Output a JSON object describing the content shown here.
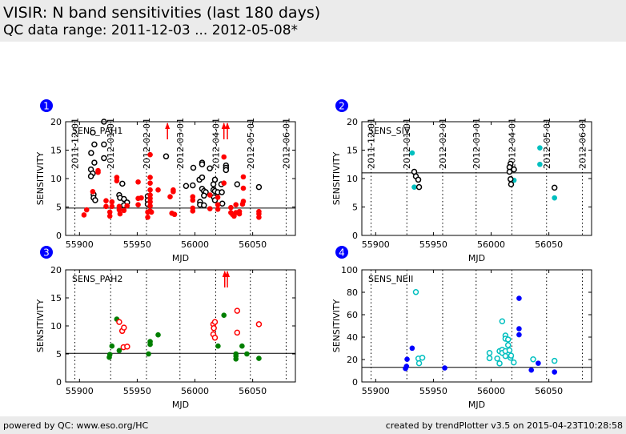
{
  "header": {
    "title": "VISIR: N band sensitivities (last 180 days)",
    "subtitle": "QC data range: 2011-12-03 ... 2012-05-08*"
  },
  "footer": {
    "left": "powered by QC: www.eso.org/HC",
    "right": "created by trendPlotter v3.5 on 2015-04-23T10:28:58"
  },
  "colors": {
    "red": "#ff0000",
    "black": "#000000",
    "green": "#007f00",
    "cyan": "#00bfbf",
    "blue": "#0000ff",
    "badge": "#0000ff"
  },
  "date_ticks": [
    {
      "label": "2011-12-01",
      "mjd": 55896
    },
    {
      "label": "2012-01-01",
      "mjd": 55927
    },
    {
      "label": "2012-02-01",
      "mjd": 55958
    },
    {
      "label": "2012-03-01",
      "mjd": 55987
    },
    {
      "label": "2012-04-01",
      "mjd": 56018
    },
    {
      "label": "2012-05-01",
      "mjd": 56048
    },
    {
      "label": "2012-06-01",
      "mjd": 56079
    }
  ],
  "chart_data": [
    {
      "id": "1",
      "type": "scatter",
      "title": "SENS_PAH1",
      "xlabel": "MJD",
      "ylabel": "SENSITIVITY",
      "xlim": [
        55888,
        56087
      ],
      "ylim": [
        0,
        20
      ],
      "xticks": [
        55900,
        55950,
        56000,
        56050
      ],
      "yticks": [
        0,
        5,
        10,
        15,
        20
      ],
      "threshold": 4.8,
      "grid": "dotted monthly verticals",
      "series": [
        {
          "name": "black-open",
          "color": "#000000",
          "filled": false,
          "points": [
            [
              55911.5,
              18.1
            ],
            [
              55921.2,
              20
            ],
            [
              55912.9,
              16
            ],
            [
              55921.2,
              16
            ],
            [
              55910.1,
              14.5
            ],
            [
              55921.2,
              13.6
            ],
            [
              55912.9,
              12.8
            ],
            [
              55909.9,
              11.6
            ],
            [
              55911.5,
              10.9
            ],
            [
              55909.9,
              10.4
            ],
            [
              55912.2,
              7.2
            ],
            [
              55912.2,
              6.6
            ],
            [
              55913.6,
              6.2
            ],
            [
              55934.4,
              7.1
            ],
            [
              55935.1,
              6.6
            ],
            [
              55937.1,
              9.1
            ],
            [
              55938.5,
              6.4
            ],
            [
              55941.2,
              5.8
            ],
            [
              55938.5,
              5.3
            ],
            [
              55959.1,
              6.9
            ],
            [
              55959.1,
              6.2
            ],
            [
              55959.1,
              5.5
            ],
            [
              55975,
              13.9
            ],
            [
              55998.6,
              11.9
            ],
            [
              55992.3,
              8.7
            ],
            [
              55998.1,
              8.8
            ],
            [
              56006.2,
              12.8
            ],
            [
              56006.2,
              12.5
            ],
            [
              56012.9,
              11.8
            ],
            [
              56003.9,
              9.8
            ],
            [
              56006.2,
              10.2
            ],
            [
              56006.2,
              8.2
            ],
            [
              56007.8,
              7.8
            ],
            [
              56009.4,
              7.6
            ],
            [
              56007.8,
              7.0
            ],
            [
              56004.4,
              5.9
            ],
            [
              56004.4,
              5.4
            ],
            [
              56007.8,
              5.3
            ],
            [
              56017.3,
              9.8
            ],
            [
              56016,
              9.0
            ],
            [
              56016,
              8.0
            ],
            [
              56017.3,
              7.8
            ],
            [
              56016.5,
              6.7
            ],
            [
              56017.3,
              6.2
            ],
            [
              56019.8,
              7.6
            ],
            [
              56023.3,
              7.6
            ],
            [
              56022.8,
              9.0
            ],
            [
              56023.7,
              5.6
            ],
            [
              56026.9,
              12.3
            ],
            [
              56026.9,
              11.9
            ],
            [
              56026.9,
              11.5
            ],
            [
              56036.6,
              9.0
            ],
            [
              56055.4,
              8.5
            ]
          ]
        },
        {
          "name": "red-filled",
          "color": "#ff0000",
          "filled": true,
          "points": [
            [
              55903.9,
              3.6
            ],
            [
              55906.2,
              4.5
            ],
            [
              55911.5,
              7.7
            ],
            [
              55916.1,
              11.4
            ],
            [
              55916.1,
              11.1
            ],
            [
              55923,
              6.1
            ],
            [
              55923,
              5.1
            ],
            [
              55926.3,
              4.1
            ],
            [
              55926.3,
              3.4
            ],
            [
              55928.1,
              5.9
            ],
            [
              55928.1,
              5.1
            ],
            [
              55932.3,
              10.2
            ],
            [
              55932.3,
              9.6
            ],
            [
              55934.4,
              5.1
            ],
            [
              55934.4,
              4.5
            ],
            [
              55935.1,
              3.8
            ],
            [
              55938.5,
              4.4
            ],
            [
              55941.2,
              5.2
            ],
            [
              55950.8,
              9.4
            ],
            [
              55950.8,
              6.5
            ],
            [
              55950.8,
              5.4
            ],
            [
              55953.5,
              6.6
            ],
            [
              55959.1,
              3.2
            ],
            [
              55959.1,
              4.1
            ],
            [
              55961.2,
              14.2
            ],
            [
              55961.2,
              10.2
            ],
            [
              55961.2,
              9.2
            ],
            [
              55961.2,
              8.0
            ],
            [
              55961.2,
              7.1
            ],
            [
              55961.2,
              6.5
            ],
            [
              55961.2,
              5.9
            ],
            [
              55961.2,
              5.2
            ],
            [
              55961.2,
              4.3
            ],
            [
              55962.3,
              4.1
            ],
            [
              55968.1,
              8.0
            ],
            [
              55978.5,
              6.8
            ],
            [
              55981.2,
              8.0
            ],
            [
              55981.2,
              7.7
            ],
            [
              55980,
              3.9
            ],
            [
              55982.3,
              3.7
            ],
            [
              55998.1,
              6.8
            ],
            [
              55998.1,
              6.2
            ],
            [
              55998.1,
              4.8
            ],
            [
              55998.1,
              4.3
            ],
            [
              56013,
              4.7
            ],
            [
              56013,
              7.1
            ],
            [
              56019.8,
              6.7
            ],
            [
              56019.8,
              5.4
            ],
            [
              56019.8,
              4.6
            ],
            [
              56025.1,
              13.8
            ],
            [
              56025.1,
              9.2
            ],
            [
              56031.1,
              4.9
            ],
            [
              56031.1,
              4.0
            ],
            [
              56032.5,
              3.7
            ],
            [
              56033.9,
              3.4
            ],
            [
              56035.5,
              4.0
            ],
            [
              56035.5,
              5.4
            ],
            [
              56038.5,
              4.2
            ],
            [
              56038.5,
              3.8
            ],
            [
              56041.9,
              10.3
            ],
            [
              56041.9,
              8.3
            ],
            [
              56041.9,
              6.0
            ],
            [
              56041.2,
              5.5
            ],
            [
              56055.4,
              4.2
            ],
            [
              56055.4,
              3.8
            ],
            [
              56055.4,
              3.2
            ]
          ]
        }
      ],
      "offscale_arrows": [
        55976.2,
        56025.1,
        56028.1
      ]
    },
    {
      "id": "2",
      "type": "scatter",
      "title": "SENS_SIV",
      "xlabel": "MJD",
      "ylabel": "SENSITIVITY",
      "xlim": [
        55888,
        56087
      ],
      "ylim": [
        0,
        20
      ],
      "xticks": [
        55900,
        55950,
        56000,
        56050
      ],
      "yticks": [
        0,
        5,
        10,
        15,
        20
      ],
      "threshold": 11,
      "grid": "dotted monthly verticals",
      "series": [
        {
          "name": "cyan-filled",
          "color": "#00bfbf",
          "filled": true,
          "points": [
            [
              55931.6,
              14.5
            ],
            [
              55933.4,
              8.5
            ],
            [
              56042.2,
              15.4
            ],
            [
              56042.2,
              12.5
            ],
            [
              56019.8,
              9.7
            ],
            [
              56054.9,
              6.6
            ]
          ]
        },
        {
          "name": "black-open",
          "color": "#000000",
          "filled": false,
          "points": [
            [
              55933.4,
              11.2
            ],
            [
              55934.8,
              10.4
            ],
            [
              55936.9,
              9.8
            ],
            [
              55937.6,
              8.5
            ],
            [
              56016.8,
              12.6
            ],
            [
              56015.9,
              12.0
            ],
            [
              56015.9,
              11.2
            ],
            [
              56019.8,
              11.6
            ],
            [
              56016.8,
              9.9
            ],
            [
              56017.3,
              9.0
            ],
            [
              56054.9,
              8.4
            ]
          ]
        }
      ],
      "offscale_arrows": []
    },
    {
      "id": "3",
      "type": "scatter",
      "title": "SENS_PAH2",
      "xlabel": "MJD",
      "ylabel": "SENSITIVITY",
      "xlim": [
        55888,
        56087
      ],
      "ylim": [
        0,
        20
      ],
      "xticks": [
        55900,
        55950,
        56000,
        56050
      ],
      "yticks": [
        0,
        5,
        10,
        15,
        20
      ],
      "threshold": 5.1,
      "grid": "dotted monthly verticals",
      "series": [
        {
          "name": "green-filled",
          "color": "#007f00",
          "filled": true,
          "points": [
            [
              55925.8,
              4.4
            ],
            [
              55926.3,
              4.9
            ],
            [
              55928.1,
              6.4
            ],
            [
              55932.3,
              11.2
            ],
            [
              55934.4,
              5.6
            ],
            [
              55959.8,
              5.0
            ],
            [
              55961.2,
              7.2
            ],
            [
              55961.2,
              6.7
            ],
            [
              55968.1,
              8.4
            ],
            [
              56025.1,
              11.9
            ],
            [
              56020,
              6.4
            ],
            [
              56035.5,
              5.0
            ],
            [
              56035.5,
              4.6
            ],
            [
              56035.5,
              4.1
            ],
            [
              56040.8,
              6.4
            ],
            [
              56045,
              5.0
            ],
            [
              56055.4,
              4.2
            ]
          ]
        },
        {
          "name": "red-open",
          "color": "#ff0000",
          "filled": false,
          "points": [
            [
              55934.4,
              10.7
            ],
            [
              55937,
              9.1
            ],
            [
              55938.5,
              9.7
            ],
            [
              55938.1,
              6.2
            ],
            [
              55941.3,
              6.3
            ],
            [
              56015.9,
              10.3
            ],
            [
              56017.3,
              10.7
            ],
            [
              56016.4,
              9.6
            ],
            [
              56015.9,
              8.5
            ],
            [
              56017.3,
              7.9
            ],
            [
              56036.6,
              12.7
            ],
            [
              56036.6,
              8.8
            ],
            [
              56055.4,
              10.3
            ]
          ]
        }
      ],
      "offscale_arrows": [
        56025.8,
        56028.1
      ]
    },
    {
      "id": "4",
      "type": "scatter",
      "title": "SENS_NEII",
      "xlabel": "MJD",
      "ylabel": "SENSITIVITY",
      "xlim": [
        55888,
        56087
      ],
      "ylim": [
        0,
        100
      ],
      "xticks": [
        55900,
        55950,
        56000,
        56050
      ],
      "yticks": [
        0,
        20,
        40,
        60,
        80,
        100
      ],
      "threshold": 13,
      "grid": "dotted monthly verticals",
      "series": [
        {
          "name": "blue-filled",
          "color": "#0000ff",
          "filled": true,
          "points": [
            [
              55925.8,
              12
            ],
            [
              55926.7,
              13.9
            ],
            [
              55927.2,
              20.2
            ],
            [
              55931.6,
              30.1
            ],
            [
              55959.8,
              12.5
            ],
            [
              56024.2,
              74.6
            ],
            [
              56024.2,
              47.5
            ],
            [
              56024.2,
              42.1
            ],
            [
              56034.8,
              10.6
            ],
            [
              56040.8,
              16.7
            ],
            [
              56054.9,
              8.9
            ]
          ]
        },
        {
          "name": "cyan-open",
          "color": "#00bfbf",
          "filled": false,
          "points": [
            [
              55934.8,
              80.2
            ],
            [
              55937,
              20.9
            ],
            [
              55937.6,
              16.7
            ],
            [
              55940.4,
              21.6
            ],
            [
              55998.6,
              25.9
            ],
            [
              55998.6,
              21.2
            ],
            [
              56005.3,
              20.9
            ],
            [
              56007.3,
              16.5
            ],
            [
              56007.3,
              27.5
            ],
            [
              56009.6,
              54.1
            ],
            [
              56009.6,
              28.7
            ],
            [
              56009.6,
              25.9
            ],
            [
              56012.4,
              41.4
            ],
            [
              56012.4,
              38.6
            ],
            [
              56014.7,
              37.9
            ],
            [
              56014.7,
              32.9
            ],
            [
              56012.4,
              27.5
            ],
            [
              56012.4,
              23.1
            ],
            [
              56015.9,
              28.2
            ],
            [
              56016.8,
              21.6
            ],
            [
              56017.3,
              23.5
            ],
            [
              56019.6,
              17.4
            ],
            [
              56036.4,
              20.2
            ],
            [
              56054.9,
              18.8
            ]
          ]
        }
      ],
      "offscale_arrows": []
    }
  ]
}
